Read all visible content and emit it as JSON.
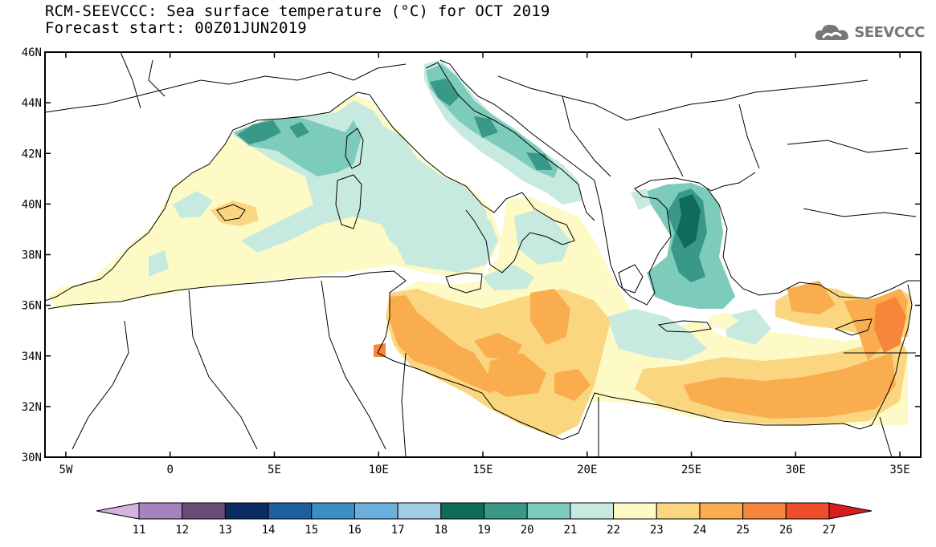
{
  "title": {
    "line1": "RCM-SEEVCCC: Sea surface temperature (°C) for OCT 2019",
    "line2": "Forecast start: 00Z01JUN2019"
  },
  "logo": {
    "text": "SEEVCCC",
    "icon": "cloud-logo-icon"
  },
  "map": {
    "lon_range": [
      -6,
      36
    ],
    "lat_range": [
      30,
      46
    ],
    "lat_ticks": [
      {
        "value": 46,
        "label": "46N"
      },
      {
        "value": 44,
        "label": "44N"
      },
      {
        "value": 42,
        "label": "42N"
      },
      {
        "value": 40,
        "label": "40N"
      },
      {
        "value": 38,
        "label": "38N"
      },
      {
        "value": 36,
        "label": "36N"
      },
      {
        "value": 34,
        "label": "34N"
      },
      {
        "value": 32,
        "label": "32N"
      },
      {
        "value": 30,
        "label": "30N"
      }
    ],
    "lon_ticks": [
      {
        "value": -5,
        "label": "5W"
      },
      {
        "value": 0,
        "label": "0"
      },
      {
        "value": 5,
        "label": "5E"
      },
      {
        "value": 10,
        "label": "10E"
      },
      {
        "value": 15,
        "label": "15E"
      },
      {
        "value": 20,
        "label": "20E"
      },
      {
        "value": 25,
        "label": "25E"
      },
      {
        "value": 30,
        "label": "30E"
      },
      {
        "value": 35,
        "label": "35E"
      }
    ]
  },
  "colorbar": {
    "ticks": [
      "11",
      "12",
      "13",
      "14",
      "15",
      "16",
      "17",
      "18",
      "19",
      "20",
      "21",
      "22",
      "23",
      "24",
      "25",
      "26",
      "27"
    ],
    "colors": [
      "#d6b3e0",
      "#a882bf",
      "#6b4e78",
      "#0b2d63",
      "#1e5fa0",
      "#3c8fc6",
      "#6ab0dc",
      "#a2cbe6",
      "#0f6b5a",
      "#3a9888",
      "#7dccbb",
      "#c6eae0",
      "#fdfac6",
      "#fbd680",
      "#f9ad4f",
      "#f7853a",
      "#ef4d2c",
      "#d81f1f"
    ]
  }
}
